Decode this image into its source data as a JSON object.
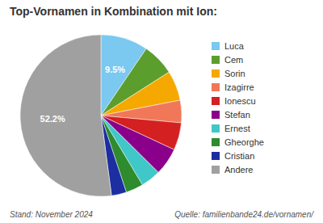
{
  "chart_data": {
    "type": "pie",
    "title": "Top-Vornamen in Kombination mit Ion:",
    "categories": [
      "Luca",
      "Cem",
      "Sorin",
      "Izagirre",
      "Ionescu",
      "Stefan",
      "Ernest",
      "Gheorghe",
      "Cristian",
      "Andere"
    ],
    "values": [
      9.5,
      6.5,
      6.0,
      4.5,
      5.5,
      5.5,
      4.0,
      3.5,
      3.0,
      52.2
    ],
    "value_labels": [
      "9.5%",
      null,
      null,
      null,
      null,
      null,
      null,
      null,
      null,
      "52.2%"
    ],
    "data_labels": true,
    "colors": [
      "#7BC8F0",
      "#5C9E2E",
      "#F5A800",
      "#F07858",
      "#D42020",
      "#8B008B",
      "#40C8C8",
      "#2E8B2E",
      "#1C2EA0",
      "#A0A0A0"
    ],
    "legend": "right",
    "annotations": [
      "Stand: November 2024",
      "Quelle: familienbande24.de/vornamen/"
    ]
  }
}
